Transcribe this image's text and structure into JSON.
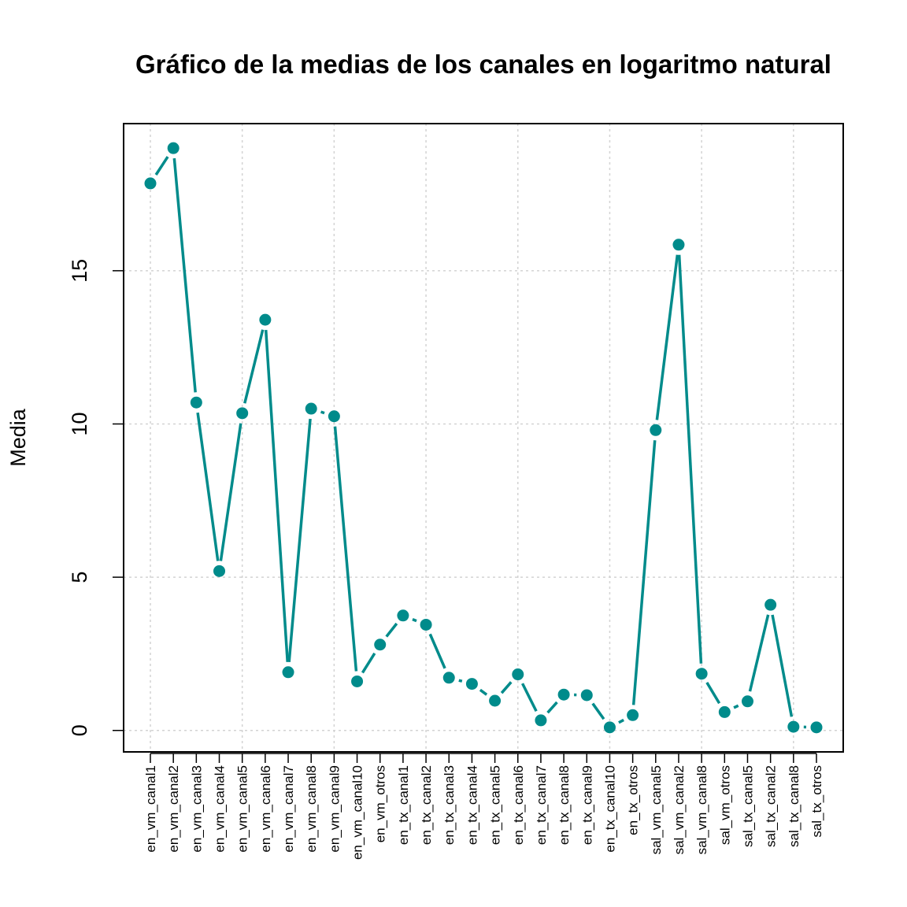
{
  "chart_data": {
    "type": "line",
    "title": "Gráfico de la medias de los canales en logaritmo natural",
    "xlabel": "",
    "ylabel": "Media",
    "categories": [
      "en_vm_canal1",
      "en_vm_canal2",
      "en_vm_canal3",
      "en_vm_canal4",
      "en_vm_canal5",
      "en_vm_canal6",
      "en_vm_canal7",
      "en_vm_canal8",
      "en_vm_canal9",
      "en_vm_canal10",
      "en_vm_otros",
      "en_tx_canal1",
      "en_tx_canal2",
      "en_tx_canal3",
      "en_tx_canal4",
      "en_tx_canal5",
      "en_tx_canal6",
      "en_tx_canal7",
      "en_tx_canal8",
      "en_tx_canal9",
      "en_tx_canal10",
      "en_tx_otros",
      "sal_vm_canal5",
      "sal_vm_canal2",
      "sal_vm_canal8",
      "sal_vm_otros",
      "sal_tx_canal5",
      "sal_tx_canal2",
      "sal_tx_canal8",
      "sal_tx_otros"
    ],
    "values": [
      17.85,
      19.0,
      10.7,
      5.2,
      10.35,
      13.4,
      1.9,
      10.5,
      10.25,
      1.6,
      2.8,
      3.75,
      3.45,
      1.72,
      1.52,
      0.97,
      1.83,
      0.33,
      1.17,
      1.15,
      0.1,
      0.5,
      9.8,
      15.85,
      1.85,
      0.6,
      0.95,
      4.1,
      0.12,
      0.1
    ],
    "ylim": [
      -0.7,
      19.8
    ],
    "yticks": [
      0,
      5,
      10,
      15
    ],
    "grid": true,
    "line_style": "overplotted points and lines",
    "color": "#008B8B"
  }
}
